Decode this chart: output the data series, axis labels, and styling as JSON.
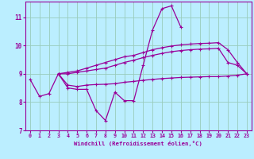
{
  "xlabel": "Windchill (Refroidissement éolien,°C)",
  "background_color": "#bbeeff",
  "grid_color": "#99ccbb",
  "line_color": "#990099",
  "x_hours": [
    0,
    1,
    2,
    3,
    4,
    5,
    6,
    7,
    8,
    9,
    10,
    11,
    12,
    13,
    14,
    15,
    16,
    17,
    18,
    19,
    20,
    21,
    22,
    23
  ],
  "line_jagged": [
    8.8,
    8.2,
    8.3,
    9.0,
    8.5,
    8.45,
    8.45,
    7.7,
    7.35,
    8.35,
    8.05,
    8.05,
    9.3,
    10.55,
    11.3,
    11.4,
    10.65,
    null,
    null,
    null,
    null,
    null,
    null,
    null
  ],
  "line_top": [
    null,
    null,
    null,
    9.0,
    9.05,
    9.1,
    9.2,
    9.3,
    9.4,
    9.5,
    9.6,
    9.65,
    9.75,
    9.85,
    9.92,
    9.98,
    10.02,
    10.05,
    10.07,
    10.08,
    10.1,
    9.85,
    9.4,
    9.0
  ],
  "line_mid": [
    null,
    null,
    null,
    9.0,
    9.0,
    9.05,
    9.1,
    9.15,
    9.2,
    9.3,
    9.4,
    9.48,
    9.57,
    9.65,
    9.72,
    9.78,
    9.82,
    9.85,
    9.87,
    9.88,
    9.9,
    9.4,
    9.3,
    9.0
  ],
  "line_bot": [
    null,
    null,
    null,
    9.0,
    8.6,
    8.55,
    8.6,
    8.62,
    8.63,
    8.65,
    8.7,
    8.73,
    8.77,
    8.8,
    8.83,
    8.85,
    8.87,
    8.88,
    8.89,
    8.9,
    8.9,
    8.92,
    8.95,
    9.0
  ],
  "ylim": [
    7.0,
    11.55
  ],
  "yticks": [
    7,
    8,
    9,
    10,
    11
  ],
  "xticks": [
    0,
    1,
    2,
    3,
    4,
    5,
    6,
    7,
    8,
    9,
    10,
    11,
    12,
    13,
    14,
    15,
    16,
    17,
    18,
    19,
    20,
    21,
    22,
    23
  ]
}
